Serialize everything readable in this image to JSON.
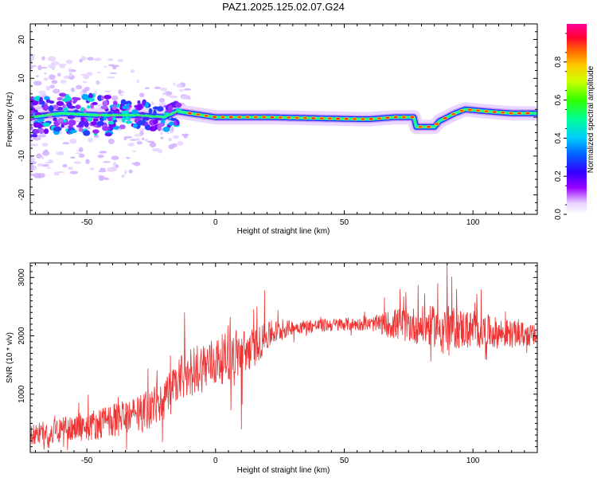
{
  "title": "PAZ1.2025.125.02.07.G24",
  "chart_data": [
    {
      "type": "heatmap",
      "xlabel": "Height of straight line (km)",
      "ylabel": "Frequency (Hz)",
      "xlim": [
        -72,
        125
      ],
      "ylim": [
        -25,
        24
      ],
      "xticks": [
        -50,
        0,
        50,
        100
      ],
      "yticks": [
        -20,
        -10,
        0,
        10,
        20
      ],
      "colorbar": {
        "label": "Normalized spectral amplitude",
        "range": [
          0,
          1
        ],
        "ticks": [
          "0.0",
          "0.2",
          "0.4",
          "0.6",
          "0.8"
        ]
      },
      "ridge": [
        {
          "x": -72,
          "y": 0
        },
        {
          "x": -60,
          "y": 1
        },
        {
          "x": -45,
          "y": 0.5
        },
        {
          "x": -30,
          "y": 0.5
        },
        {
          "x": -20,
          "y": 0
        },
        {
          "x": -15,
          "y": 1.5
        },
        {
          "x": -10,
          "y": 1
        },
        {
          "x": 0,
          "y": 0
        },
        {
          "x": 10,
          "y": 0
        },
        {
          "x": 20,
          "y": 0
        },
        {
          "x": 55,
          "y": -0.5
        },
        {
          "x": 60,
          "y": -0.5
        },
        {
          "x": 70,
          "y": 0
        },
        {
          "x": 77,
          "y": 0
        },
        {
          "x": 78,
          "y": -2.5
        },
        {
          "x": 85,
          "y": -2.5
        },
        {
          "x": 87,
          "y": -1
        },
        {
          "x": 93,
          "y": 1
        },
        {
          "x": 97,
          "y": 2
        },
        {
          "x": 105,
          "y": 1.5
        },
        {
          "x": 115,
          "y": 1
        },
        {
          "x": 125,
          "y": 1
        }
      ]
    },
    {
      "type": "line",
      "xlabel": "Height of straight line (km)",
      "ylabel": "SNR (10 * v/v)",
      "xlim": [
        -72,
        125
      ],
      "ylim": [
        0,
        3250
      ],
      "xticks": [
        -50,
        0,
        50,
        100
      ],
      "yticks": [
        1000,
        2000,
        3000
      ],
      "color": "#ee3333",
      "trend": [
        {
          "x": -72,
          "y": 300
        },
        {
          "x": -50,
          "y": 450
        },
        {
          "x": -30,
          "y": 650
        },
        {
          "x": -20,
          "y": 900
        },
        {
          "x": -10,
          "y": 1400
        },
        {
          "x": 0,
          "y": 1550
        },
        {
          "x": 5,
          "y": 1650
        },
        {
          "x": 10,
          "y": 1700
        },
        {
          "x": 15,
          "y": 1800
        },
        {
          "x": 22,
          "y": 2050
        },
        {
          "x": 30,
          "y": 2150
        },
        {
          "x": 50,
          "y": 2200
        },
        {
          "x": 70,
          "y": 2200
        },
        {
          "x": 90,
          "y": 2150
        },
        {
          "x": 110,
          "y": 2050
        },
        {
          "x": 125,
          "y": 2000
        }
      ],
      "noise_amplitude": [
        {
          "x": -72,
          "y": 180
        },
        {
          "x": -30,
          "y": 320
        },
        {
          "x": -10,
          "y": 450
        },
        {
          "x": 10,
          "y": 420
        },
        {
          "x": 20,
          "y": 250
        },
        {
          "x": 30,
          "y": 120
        },
        {
          "x": 60,
          "y": 110
        },
        {
          "x": 70,
          "y": 280
        },
        {
          "x": 90,
          "y": 380
        },
        {
          "x": 125,
          "y": 180
        }
      ]
    }
  ]
}
